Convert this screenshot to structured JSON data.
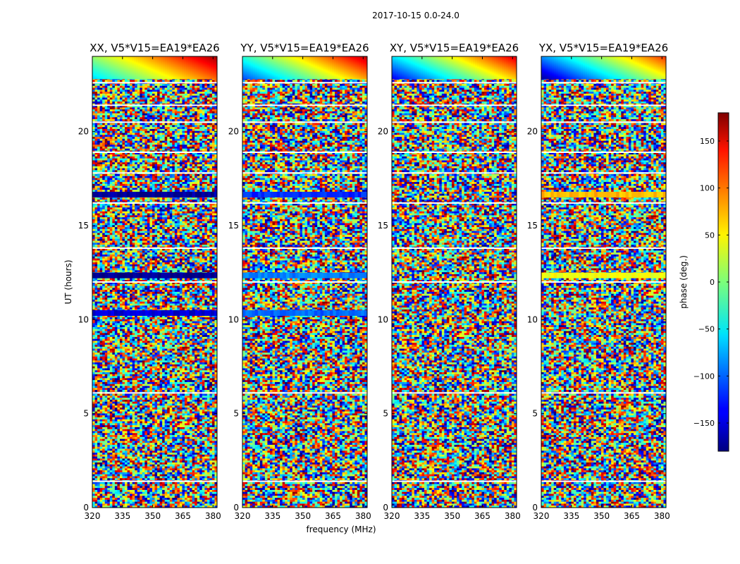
{
  "figure": {
    "title": "2017-10-15 0.0-24.0",
    "ylabel": "UT (hours)",
    "xlabel": "frequency (MHz)"
  },
  "chart_data": {
    "type": "heatmap",
    "title": "2017-10-15 0.0-24.0",
    "xlabel": "frequency (MHz)",
    "ylabel": "UT (hours)",
    "xlim": [
      320,
      382
    ],
    "ylim": [
      0,
      24
    ],
    "xticks": [
      320,
      335,
      350,
      365,
      380
    ],
    "yticks": [
      0,
      5,
      10,
      15,
      20
    ],
    "panels": [
      {
        "title": "XX, V5*V15=EA19*EA26",
        "polarization": "XX",
        "coherent_bands": [
          {
            "ut_start": 22.8,
            "ut_end": 24.0,
            "phase_start_deg": -60,
            "phase_end_deg": 170,
            "description": "diagonal phase wrap"
          },
          {
            "ut_start": 16.5,
            "ut_end": 16.8,
            "phase_deg": -170
          },
          {
            "ut_start": 12.2,
            "ut_end": 12.5,
            "phase_deg": -175
          },
          {
            "ut_start": 10.2,
            "ut_end": 10.5,
            "phase_deg": -150
          }
        ]
      },
      {
        "title": "YY, V5*V15=EA19*EA26",
        "polarization": "YY",
        "coherent_bands": [
          {
            "ut_start": 22.8,
            "ut_end": 24.0,
            "phase_start_deg": -110,
            "phase_end_deg": 160,
            "description": "diagonal phase wrap"
          },
          {
            "ut_start": 16.5,
            "ut_end": 16.8,
            "phase_deg": -120
          },
          {
            "ut_start": 12.2,
            "ut_end": 12.5,
            "phase_deg": -90
          },
          {
            "ut_start": 10.2,
            "ut_end": 10.5,
            "phase_deg": -100
          }
        ]
      },
      {
        "title": "XY, V5*V15=EA19*EA26",
        "polarization": "XY",
        "coherent_bands": [
          {
            "ut_start": 22.8,
            "ut_end": 24.0,
            "phase_start_deg": -140,
            "phase_end_deg": 150,
            "description": "diagonal phase wrap"
          }
        ]
      },
      {
        "title": "YX, V5*V15=EA19*EA26",
        "polarization": "YX",
        "coherent_bands": [
          {
            "ut_start": 22.8,
            "ut_end": 24.0,
            "phase_start_deg": -170,
            "phase_end_deg": 120,
            "description": "diagonal phase wrap"
          },
          {
            "ut_start": 16.5,
            "ut_end": 16.8,
            "phase_deg": 70
          },
          {
            "ut_start": 12.2,
            "ut_end": 12.5,
            "phase_deg": 40
          }
        ]
      }
    ],
    "colorbar": {
      "label": "phase (deg.)",
      "range": [
        -180,
        180
      ],
      "ticks": [
        -150,
        -100,
        -50,
        0,
        50,
        100,
        150
      ],
      "colormap": "jet"
    },
    "flagged_ut_rows": [
      1.4,
      6.1,
      12.0,
      13.8,
      16.2,
      17.8,
      18.9,
      20.5,
      21.4,
      22.6
    ]
  }
}
